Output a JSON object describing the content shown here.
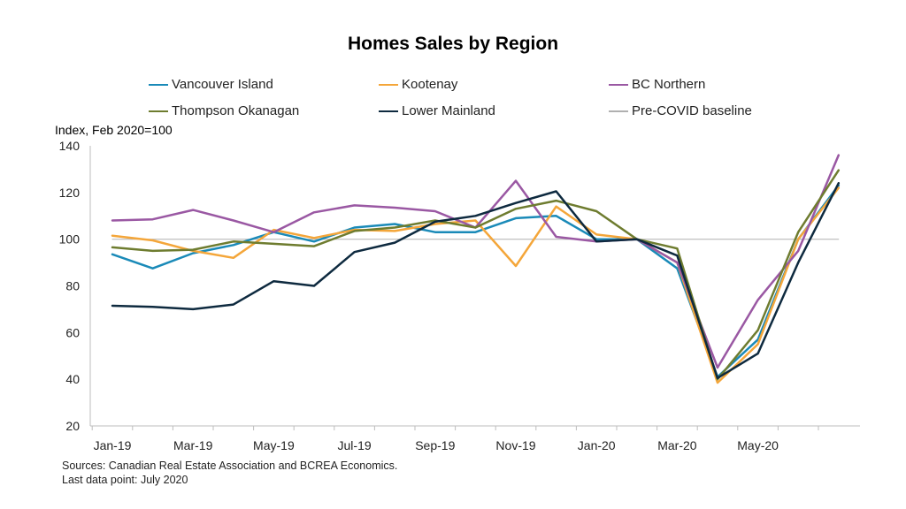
{
  "chart_data": {
    "type": "line",
    "title": "Homes Sales by Region",
    "ylabel": "Index, Feb 2020=100",
    "xlabel": "",
    "ylim": [
      20,
      140
    ],
    "yticks": [
      20,
      40,
      60,
      80,
      100,
      120,
      140
    ],
    "x": [
      "Jan-19",
      "Feb-19",
      "Mar-19",
      "Apr-19",
      "May-19",
      "Jun-19",
      "Jul-19",
      "Aug-19",
      "Sep-19",
      "Oct-19",
      "Nov-19",
      "Dec-19",
      "Jan-20",
      "Feb-20",
      "Mar-20",
      "Apr-20",
      "May-20",
      "Jun-20",
      "Jul-20"
    ],
    "xtick_labels": [
      "Jan-19",
      "",
      "Mar-19",
      "",
      "May-19",
      "",
      "Jul-19",
      "",
      "Sep-19",
      "",
      "Nov-19",
      "",
      "Jan-20",
      "",
      "Mar-20",
      "",
      "May-20",
      "",
      ""
    ],
    "grid": false,
    "legend_position": "top",
    "series": [
      {
        "name": "Vancouver Island",
        "color": "#1a8ab8",
        "values": [
          93.5,
          87.5,
          94,
          97.5,
          103,
          99,
          105,
          106.5,
          103,
          103,
          109,
          110,
          100,
          100,
          87.5,
          41,
          57,
          100,
          123
        ]
      },
      {
        "name": "Kootenay",
        "color": "#f4a63a",
        "values": [
          101.5,
          99.5,
          95,
          92,
          104,
          100.5,
          104,
          103.5,
          106.5,
          108,
          88.5,
          114,
          102,
          100,
          90,
          38.5,
          55,
          100,
          122
        ]
      },
      {
        "name": "BC Northern",
        "color": "#9a58a3",
        "values": [
          108,
          108.5,
          112.5,
          108,
          103,
          111.5,
          114.5,
          113.5,
          112,
          105,
          125,
          101,
          99,
          100,
          90,
          45,
          74,
          95,
          136
        ]
      },
      {
        "name": "Thompson Okanagan",
        "color": "#6e7c2f",
        "values": [
          96.5,
          95,
          95.5,
          99,
          98,
          97,
          103.5,
          105,
          108,
          105,
          113,
          116.5,
          112,
          100,
          96,
          40,
          61,
          103,
          129.5
        ]
      },
      {
        "name": "Lower Mainland",
        "color": "#0e2a3f",
        "values": [
          71.5,
          71,
          70,
          72,
          82,
          80,
          94.5,
          98.5,
          107.5,
          110,
          115.5,
          120.5,
          99,
          100,
          93,
          40.5,
          51,
          90,
          124
        ]
      },
      {
        "name": "Pre-COVID baseline",
        "color": "#b0b0b0",
        "values": [
          100,
          100,
          100,
          100,
          100,
          100,
          100,
          100,
          100,
          100,
          100,
          100,
          100,
          100,
          100,
          100,
          100,
          100,
          100
        ]
      }
    ]
  },
  "sources": "Sources: Canadian Real Estate Association and BCREA Economics.",
  "last_data_point": "Last data point: July 2020"
}
